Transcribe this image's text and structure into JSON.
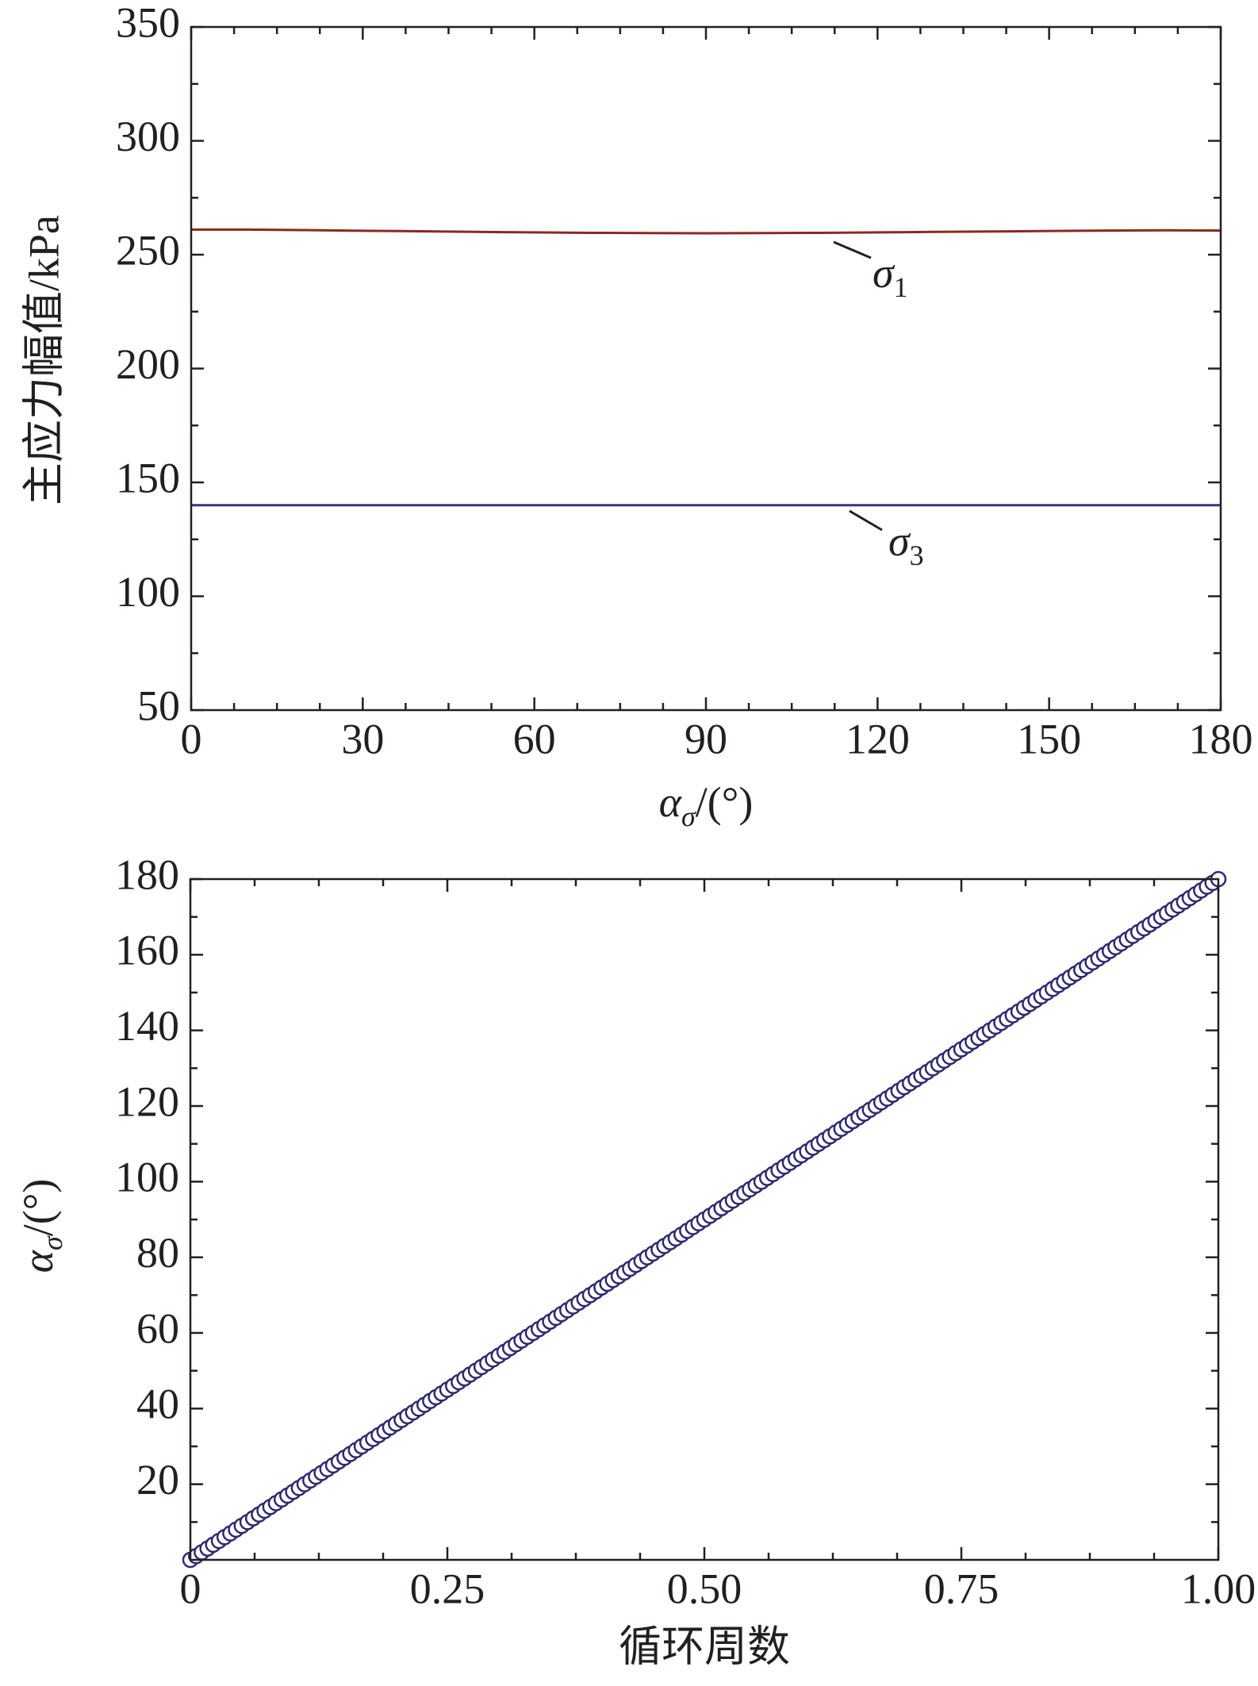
{
  "chart_data": [
    {
      "type": "line",
      "ylabel": "主应力幅值/kPa",
      "xlabel": [
        "α",
        "σ",
        "/(°)"
      ],
      "x": [
        0,
        10,
        20,
        30,
        40,
        50,
        60,
        70,
        80,
        90,
        100,
        110,
        120,
        130,
        140,
        150,
        160,
        170,
        180
      ],
      "series": [
        {
          "color": "#8b2a1f",
          "values": [
            261,
            261,
            260.8,
            260.5,
            260.3,
            260,
            259.8,
            259.6,
            259.5,
            259.4,
            259.5,
            259.6,
            259.8,
            260,
            260.2,
            260.4,
            260.6,
            260.7,
            260.6
          ]
        },
        {
          "color": "#3c3278",
          "values": [
            140,
            140,
            140,
            140,
            140,
            140,
            140,
            140,
            140,
            140,
            140,
            140,
            140,
            140,
            140,
            140,
            140,
            140,
            140
          ]
        }
      ],
      "annotations": [
        {
          "text": "σ",
          "subscript": "1"
        },
        {
          "text": "σ",
          "subscript": "3"
        }
      ],
      "xlim": [
        0,
        180
      ],
      "xticks": [
        0,
        30,
        60,
        90,
        120,
        150,
        180
      ],
      "x_minor_per_major": 4,
      "ylim": [
        50,
        350
      ],
      "yticks": [
        50,
        100,
        150,
        200,
        250,
        300,
        350
      ],
      "y_minor_per_major": 2
    },
    {
      "type": "scatter",
      "ylabel": [
        "α",
        "σ",
        "/(°)"
      ],
      "xlabel": "循环周数",
      "color": "#2e2a6e",
      "x": [
        0,
        0.0056,
        0.0111,
        0.0167,
        0.0222,
        0.0278,
        0.0333,
        0.0389,
        0.0444,
        0.05,
        0.0556,
        0.0611,
        0.0667,
        0.0722,
        0.0778,
        0.0833,
        0.0889,
        0.0944,
        0.1,
        0.1056,
        0.1111,
        0.1167,
        0.1222,
        0.1278,
        0.1333,
        0.1389,
        0.1444,
        0.15,
        0.1556,
        0.1611,
        0.1667,
        0.1722,
        0.1778,
        0.1833,
        0.1889,
        0.1944,
        0.2,
        0.2056,
        0.2111,
        0.2167,
        0.2222,
        0.2278,
        0.2333,
        0.2389,
        0.2444,
        0.25,
        0.2556,
        0.2611,
        0.2667,
        0.2722,
        0.2778,
        0.2833,
        0.2889,
        0.2944,
        0.3,
        0.3056,
        0.3111,
        0.3167,
        0.3222,
        0.3278,
        0.3333,
        0.3389,
        0.3444,
        0.35,
        0.3556,
        0.3611,
        0.3667,
        0.3722,
        0.3778,
        0.3833,
        0.3889,
        0.3944,
        0.4,
        0.4056,
        0.4111,
        0.4167,
        0.4222,
        0.4278,
        0.4333,
        0.4389,
        0.4444,
        0.45,
        0.4556,
        0.4611,
        0.4667,
        0.4722,
        0.4778,
        0.4833,
        0.4889,
        0.4944,
        0.5,
        0.5056,
        0.5111,
        0.5167,
        0.5222,
        0.5278,
        0.5333,
        0.5389,
        0.5444,
        0.55,
        0.5556,
        0.5611,
        0.5667,
        0.5722,
        0.5778,
        0.5833,
        0.5889,
        0.5944,
        0.6,
        0.6056,
        0.6111,
        0.6167,
        0.6222,
        0.6278,
        0.6333,
        0.6389,
        0.6444,
        0.65,
        0.6556,
        0.6611,
        0.6667,
        0.6722,
        0.6778,
        0.6833,
        0.6889,
        0.6944,
        0.7,
        0.7056,
        0.7111,
        0.7167,
        0.7222,
        0.7278,
        0.7333,
        0.7389,
        0.7444,
        0.75,
        0.7556,
        0.7611,
        0.7667,
        0.7722,
        0.7778,
        0.7833,
        0.7889,
        0.7944,
        0.8,
        0.8056,
        0.8111,
        0.8167,
        0.8222,
        0.8278,
        0.8333,
        0.8389,
        0.8444,
        0.85,
        0.8556,
        0.8611,
        0.8667,
        0.8722,
        0.8778,
        0.8833,
        0.8889,
        0.8944,
        0.9,
        0.9056,
        0.9111,
        0.9167,
        0.9222,
        0.9278,
        0.9333,
        0.9389,
        0.9444,
        0.95,
        0.9556,
        0.9611,
        0.9667,
        0.9722,
        0.9778,
        0.9833,
        0.9889,
        0.9944,
        1
      ],
      "values": [
        0,
        1,
        2,
        3,
        4,
        5,
        6,
        7,
        8,
        9,
        10,
        11,
        12,
        13,
        14,
        15,
        16,
        17,
        18,
        19,
        20,
        21,
        22,
        23,
        24,
        25,
        26,
        27,
        28,
        29,
        30,
        31,
        32,
        33,
        34,
        35,
        36,
        37,
        38,
        39,
        40,
        41,
        42,
        43,
        44,
        45,
        46,
        47,
        48,
        49,
        50,
        51,
        52,
        53,
        54,
        55,
        56,
        57,
        58,
        59,
        60,
        61,
        62,
        63,
        64,
        65,
        66,
        67,
        68,
        69,
        70,
        71,
        72,
        73,
        74,
        75,
        76,
        77,
        78,
        79,
        80,
        81,
        82,
        83,
        84,
        85,
        86,
        87,
        88,
        89,
        90,
        91,
        92,
        93,
        94,
        95,
        96,
        97,
        98,
        99,
        100,
        101,
        102,
        103,
        104,
        105,
        106,
        107,
        108,
        109,
        110,
        111,
        112,
        113,
        114,
        115,
        116,
        117,
        118,
        119,
        120,
        121,
        122,
        123,
        124,
        125,
        126,
        127,
        128,
        129,
        130,
        131,
        132,
        133,
        134,
        135,
        136,
        137,
        138,
        139,
        140,
        141,
        142,
        143,
        144,
        145,
        146,
        147,
        148,
        149,
        150,
        151,
        152,
        153,
        154,
        155,
        156,
        157,
        158,
        159,
        160,
        161,
        162,
        163,
        164,
        165,
        166,
        167,
        168,
        169,
        170,
        171,
        172,
        173,
        174,
        175,
        176,
        177,
        178,
        179,
        180
      ],
      "xlim": [
        0,
        1
      ],
      "xticks": [
        0,
        {
          "value": 0.25,
          "label": "0.25"
        },
        {
          "value": 0.5,
          "label": "0.50"
        },
        {
          "value": 0.75,
          "label": "0.75"
        },
        {
          "value": 1,
          "label": "1.00"
        }
      ],
      "x_minor_per_major": 4,
      "ylim": [
        0,
        180
      ],
      "yticks": [
        20,
        40,
        60,
        80,
        100,
        120,
        140,
        160,
        180
      ],
      "y_minor_per_major": 2
    }
  ]
}
